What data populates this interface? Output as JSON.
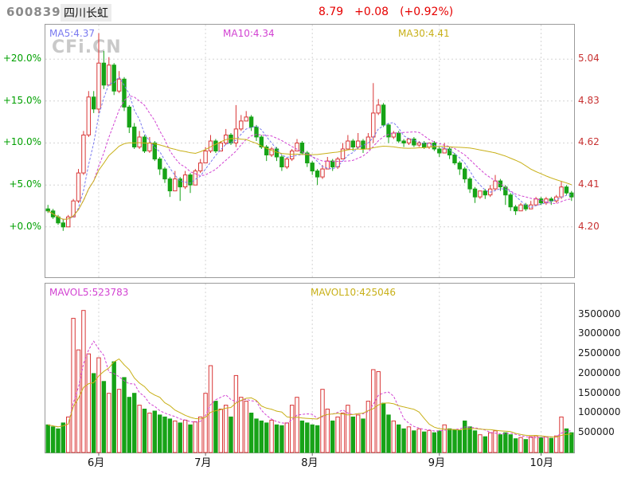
{
  "header": {
    "stock_code": "600839",
    "stock_name": "四川长虹",
    "price": "8.79",
    "change": "+0.08",
    "change_pct": "(+0.92%)"
  },
  "watermark": "CFi.CN",
  "main_chart": {
    "ma_labels": [
      {
        "label": "MA5:4.37"
      },
      {
        "label": "MA10:4.34"
      },
      {
        "label": "MA30:4.41"
      }
    ],
    "left_axis": [
      {
        "label": "+20.0%",
        "pct": 20
      },
      {
        "label": "+15.0%",
        "pct": 15
      },
      {
        "label": "+10.0%",
        "pct": 10
      },
      {
        "label": "+5.0%",
        "pct": 5
      },
      {
        "label": "+0.0%",
        "pct": 0
      }
    ],
    "right_axis": [
      {
        "label": "5.04",
        "pct": 20
      },
      {
        "label": "4.83",
        "pct": 15
      },
      {
        "label": "4.62",
        "pct": 10
      },
      {
        "label": "4.41",
        "pct": 5
      },
      {
        "label": "4.20",
        "pct": 0
      }
    ]
  },
  "volume_chart": {
    "mavol_labels": [
      {
        "label": "MAVOL5:523783"
      },
      {
        "label": "MAVOL10:425046"
      }
    ],
    "right_axis": [
      {
        "label": "3500000",
        "value": 3500000
      },
      {
        "label": "3000000",
        "value": 3000000
      },
      {
        "label": "2500000",
        "value": 2500000
      },
      {
        "label": "2000000",
        "value": 2000000
      },
      {
        "label": "1500000",
        "value": 1500000
      },
      {
        "label": "1000000",
        "value": 1000000
      },
      {
        "label": "500000",
        "value": 500000
      }
    ]
  },
  "colors": {
    "up": "#d93636",
    "down": "#17a317",
    "ma5": "#7a7af0",
    "ma10": "#d242d2",
    "ma30": "#c8b018",
    "mavol5": "#d242d2",
    "mavol10": "#c8b018",
    "pct_axis": "#00a000",
    "price_axis": "#c83232",
    "quote": "#e60000",
    "watermark": "#c9c9c9"
  },
  "chart_data": {
    "type": "candlestick",
    "title": "600839 四川长虹 daily candlestick with volume",
    "base_price": 4.2,
    "pct_min": -6.0,
    "pct_max": 24.1,
    "vol_max": 4280000,
    "price_gridlines_pct": [
      20,
      15,
      10,
      5,
      0
    ],
    "indicators": {
      "MA5": 4.37,
      "MA10": 4.34,
      "MA30": 4.41,
      "MAVOL5": 523783,
      "MAVOL10": 425046
    },
    "months": [
      {
        "label": "6月",
        "index": 10
      },
      {
        "label": "7月",
        "index": 31
      },
      {
        "label": "8月",
        "index": 52
      },
      {
        "label": "9月",
        "index": 77
      },
      {
        "label": "10月",
        "index": 97
      }
    ],
    "ohlc_fields": [
      "open",
      "high",
      "low",
      "close",
      "volume"
    ],
    "candles": [
      [
        4.29,
        4.31,
        4.27,
        4.28,
        700000
      ],
      [
        4.28,
        4.29,
        4.24,
        4.25,
        650000
      ],
      [
        4.25,
        4.26,
        4.21,
        4.22,
        600000
      ],
      [
        4.22,
        4.24,
        4.18,
        4.2,
        750000
      ],
      [
        4.2,
        4.26,
        4.2,
        4.25,
        900000
      ],
      [
        4.25,
        4.34,
        4.25,
        4.33,
        3400000
      ],
      [
        4.33,
        4.49,
        4.32,
        4.47,
        2600000
      ],
      [
        4.47,
        4.68,
        4.46,
        4.66,
        3600000
      ],
      [
        4.66,
        4.88,
        4.65,
        4.85,
        2500000
      ],
      [
        4.85,
        4.88,
        4.77,
        4.79,
        2000000
      ],
      [
        4.79,
        5.17,
        4.77,
        5.02,
        2400000
      ],
      [
        5.02,
        5.08,
        4.89,
        4.91,
        1800000
      ],
      [
        4.91,
        5.05,
        4.91,
        5.01,
        1500000
      ],
      [
        5.01,
        5.02,
        4.86,
        4.88,
        2300000
      ],
      [
        4.88,
        4.98,
        4.87,
        4.94,
        1600000
      ],
      [
        4.94,
        4.95,
        4.78,
        4.8,
        1900000
      ],
      [
        4.8,
        4.81,
        4.67,
        4.7,
        1400000
      ],
      [
        4.7,
        4.72,
        4.59,
        4.6,
        1500000
      ],
      [
        4.6,
        4.68,
        4.59,
        4.65,
        1200000
      ],
      [
        4.65,
        4.66,
        4.57,
        4.58,
        1100000
      ],
      [
        4.58,
        4.65,
        4.57,
        4.62,
        1000000
      ],
      [
        4.62,
        4.63,
        4.53,
        4.54,
        1050000
      ],
      [
        4.54,
        4.55,
        4.46,
        4.49,
        950000
      ],
      [
        4.49,
        4.5,
        4.42,
        4.44,
        900000
      ],
      [
        4.44,
        4.45,
        4.35,
        4.38,
        850000
      ],
      [
        4.38,
        4.48,
        4.38,
        4.44,
        800000
      ],
      [
        4.44,
        4.45,
        4.33,
        4.4,
        750000
      ],
      [
        4.4,
        4.48,
        4.39,
        4.46,
        820000
      ],
      [
        4.46,
        4.47,
        4.37,
        4.41,
        700000
      ],
      [
        4.41,
        4.49,
        4.41,
        4.48,
        780000
      ],
      [
        4.48,
        4.54,
        4.47,
        4.52,
        900000
      ],
      [
        4.52,
        4.6,
        4.52,
        4.58,
        1500000
      ],
      [
        4.58,
        4.66,
        4.57,
        4.63,
        2200000
      ],
      [
        4.63,
        4.64,
        4.57,
        4.58,
        1300000
      ],
      [
        4.58,
        4.63,
        4.58,
        4.62,
        1100000
      ],
      [
        4.62,
        4.69,
        4.61,
        4.66,
        1200000
      ],
      [
        4.66,
        4.67,
        4.61,
        4.62,
        900000
      ],
      [
        4.62,
        4.81,
        4.6,
        4.69,
        1950000
      ],
      [
        4.69,
        4.76,
        4.68,
        4.73,
        1400000
      ],
      [
        4.73,
        4.78,
        4.73,
        4.75,
        1300000
      ],
      [
        4.75,
        4.76,
        4.68,
        4.7,
        1000000
      ],
      [
        4.7,
        4.71,
        4.63,
        4.65,
        850000
      ],
      [
        4.65,
        4.66,
        4.59,
        4.6,
        800000
      ],
      [
        4.6,
        4.61,
        4.53,
        4.56,
        750000
      ],
      [
        4.56,
        4.6,
        4.55,
        4.59,
        820000
      ],
      [
        4.59,
        4.6,
        4.53,
        4.55,
        700000
      ],
      [
        4.55,
        4.56,
        4.48,
        4.5,
        680000
      ],
      [
        4.5,
        4.55,
        4.49,
        4.54,
        750000
      ],
      [
        4.54,
        4.59,
        4.53,
        4.58,
        1200000
      ],
      [
        4.58,
        4.64,
        4.58,
        4.62,
        1400000
      ],
      [
        4.62,
        4.63,
        4.56,
        4.57,
        800000
      ],
      [
        4.57,
        4.58,
        4.5,
        4.52,
        750000
      ],
      [
        4.52,
        4.53,
        4.46,
        4.48,
        700000
      ],
      [
        4.48,
        4.49,
        4.41,
        4.45,
        680000
      ],
      [
        4.45,
        4.51,
        4.44,
        4.49,
        1600000
      ],
      [
        4.49,
        4.55,
        4.49,
        4.53,
        1100000
      ],
      [
        4.53,
        4.54,
        4.48,
        4.5,
        800000
      ],
      [
        4.5,
        4.55,
        4.49,
        4.54,
        900000
      ],
      [
        4.54,
        4.62,
        4.54,
        4.59,
        1000000
      ],
      [
        4.59,
        4.66,
        4.59,
        4.63,
        1200000
      ],
      [
        4.63,
        4.64,
        4.58,
        4.6,
        900000
      ],
      [
        4.6,
        4.67,
        4.59,
        4.63,
        950000
      ],
      [
        4.63,
        4.64,
        4.57,
        4.59,
        850000
      ],
      [
        4.59,
        4.67,
        4.59,
        4.65,
        1300000
      ],
      [
        4.65,
        4.92,
        4.62,
        4.77,
        2100000
      ],
      [
        4.77,
        4.84,
        4.76,
        4.81,
        2050000
      ],
      [
        4.81,
        4.82,
        4.7,
        4.71,
        1250000
      ],
      [
        4.71,
        4.72,
        4.62,
        4.65,
        950000
      ],
      [
        4.65,
        4.68,
        4.64,
        4.67,
        800000
      ],
      [
        4.67,
        4.68,
        4.62,
        4.63,
        700000
      ],
      [
        4.63,
        4.64,
        4.6,
        4.62,
        600000
      ],
      [
        4.62,
        4.64,
        4.61,
        4.64,
        650000
      ],
      [
        4.64,
        4.65,
        4.6,
        4.61,
        550000
      ],
      [
        4.61,
        4.63,
        4.6,
        4.62,
        600000
      ],
      [
        4.62,
        4.63,
        4.59,
        4.6,
        520000
      ],
      [
        4.6,
        4.62,
        4.59,
        4.62,
        560000
      ],
      [
        4.62,
        4.63,
        4.58,
        4.59,
        500000
      ],
      [
        4.59,
        4.6,
        4.55,
        4.57,
        550000
      ],
      [
        4.57,
        4.62,
        4.57,
        4.59,
        700000
      ],
      [
        4.59,
        4.6,
        4.54,
        4.56,
        600000
      ],
      [
        4.56,
        4.57,
        4.51,
        4.52,
        580000
      ],
      [
        4.52,
        4.53,
        4.46,
        4.49,
        560000
      ],
      [
        4.49,
        4.5,
        4.42,
        4.44,
        800000
      ],
      [
        4.44,
        4.45,
        4.37,
        4.39,
        650000
      ],
      [
        4.39,
        4.4,
        4.32,
        4.35,
        550000
      ],
      [
        4.35,
        4.38,
        4.34,
        4.38,
        450000
      ],
      [
        4.38,
        4.39,
        4.34,
        4.36,
        400000
      ],
      [
        4.36,
        4.41,
        4.35,
        4.39,
        500000
      ],
      [
        4.39,
        4.46,
        4.38,
        4.43,
        550000
      ],
      [
        4.43,
        4.44,
        4.38,
        4.4,
        450000
      ],
      [
        4.4,
        4.41,
        4.31,
        4.36,
        500000
      ],
      [
        4.36,
        4.37,
        4.28,
        4.3,
        450000
      ],
      [
        4.3,
        4.31,
        4.26,
        4.28,
        350000
      ],
      [
        4.28,
        4.32,
        4.28,
        4.31,
        380000
      ],
      [
        4.31,
        4.32,
        4.28,
        4.29,
        330000
      ],
      [
        4.29,
        4.33,
        4.29,
        4.31,
        400000
      ],
      [
        4.31,
        4.35,
        4.31,
        4.34,
        420000
      ],
      [
        4.34,
        4.35,
        4.31,
        4.32,
        380000
      ],
      [
        4.32,
        4.35,
        4.31,
        4.34,
        400000
      ],
      [
        4.34,
        4.35,
        4.31,
        4.33,
        360000
      ],
      [
        4.33,
        4.36,
        4.32,
        4.35,
        420000
      ],
      [
        4.35,
        4.43,
        4.34,
        4.4,
        900000
      ],
      [
        4.4,
        4.41,
        4.36,
        4.37,
        600000
      ],
      [
        4.37,
        4.38,
        4.33,
        4.35,
        500000
      ]
    ]
  }
}
